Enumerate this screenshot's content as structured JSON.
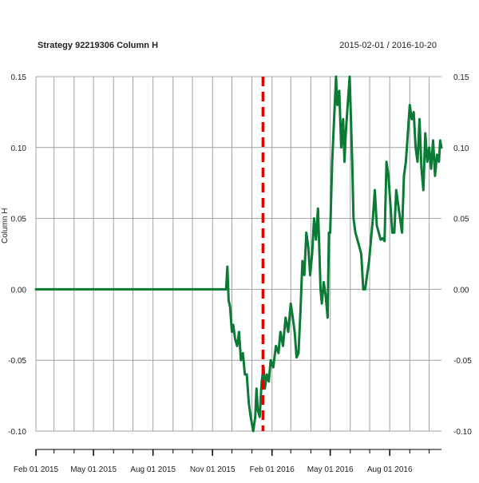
{
  "title": "Strategy 92219306 Column H",
  "date_range": "2015-02-01 / 2016-10-20",
  "colors": {
    "line": "#0b7a35",
    "event_line": "#e00000",
    "grid": "#a0a0a0",
    "axis": "#000000"
  },
  "chart_data": {
    "type": "line",
    "title": "Strategy 92219306 Column H",
    "subtitle": "2015-02-01 / 2016-10-20",
    "xlabel": "",
    "ylabel": "Column H",
    "x_range": [
      "2015-02-01",
      "2016-10-20"
    ],
    "ylim": [
      -0.1,
      0.15
    ],
    "y_ticks": [
      -0.1,
      -0.05,
      0.0,
      0.05,
      0.1,
      0.15
    ],
    "y_tick_labels": [
      "-0.10",
      "-0.05",
      "0.00",
      "0.05",
      "0.10",
      "0.15"
    ],
    "x_tick_dates": [
      "2015-02-01",
      "2015-05-01",
      "2015-08-01",
      "2015-11-01",
      "2016-02-01",
      "2016-05-01",
      "2016-08-01"
    ],
    "x_tick_labels": [
      "Feb 01 2015",
      "May 01 2015",
      "Aug 01 2015",
      "Nov 01 2015",
      "Feb 01 2016",
      "May 01 2016",
      "Aug 01 2016"
    ],
    "grid": true,
    "event_line": {
      "date": "2016-01-18",
      "style": "dashed"
    },
    "series": [
      {
        "values": [
          [
            "2015-02-01",
            0.0
          ],
          [
            "2015-11-22",
            0.0
          ],
          [
            "2015-11-24",
            0.016
          ],
          [
            "2015-11-26",
            -0.008
          ],
          [
            "2015-11-28",
            -0.012
          ],
          [
            "2015-12-01",
            -0.03
          ],
          [
            "2015-12-03",
            -0.025
          ],
          [
            "2015-12-06",
            -0.035
          ],
          [
            "2015-12-09",
            -0.04
          ],
          [
            "2015-12-12",
            -0.03
          ],
          [
            "2015-12-15",
            -0.05
          ],
          [
            "2015-12-18",
            -0.045
          ],
          [
            "2015-12-21",
            -0.06
          ],
          [
            "2015-12-24",
            -0.06
          ],
          [
            "2015-12-27",
            -0.08
          ],
          [
            "2015-12-30",
            -0.09
          ],
          [
            "2016-01-01",
            -0.095
          ],
          [
            "2016-01-03",
            -0.1
          ],
          [
            "2016-01-06",
            -0.09
          ],
          [
            "2016-01-08",
            -0.07
          ],
          [
            "2016-01-10",
            -0.085
          ],
          [
            "2016-01-13",
            -0.09
          ],
          [
            "2016-01-16",
            -0.065
          ],
          [
            "2016-01-19",
            -0.055
          ],
          [
            "2016-01-21",
            -0.07
          ],
          [
            "2016-01-24",
            -0.06
          ],
          [
            "2016-01-27",
            -0.065
          ],
          [
            "2016-01-30",
            -0.05
          ],
          [
            "2016-02-03",
            -0.055
          ],
          [
            "2016-02-07",
            -0.04
          ],
          [
            "2016-02-11",
            -0.045
          ],
          [
            "2016-02-14",
            -0.03
          ],
          [
            "2016-02-18",
            -0.04
          ],
          [
            "2016-02-22",
            -0.02
          ],
          [
            "2016-02-26",
            -0.03
          ],
          [
            "2016-03-01",
            -0.01
          ],
          [
            "2016-03-04",
            -0.02
          ],
          [
            "2016-03-07",
            -0.03
          ],
          [
            "2016-03-10",
            -0.048
          ],
          [
            "2016-03-13",
            -0.045
          ],
          [
            "2016-03-16",
            -0.015
          ],
          [
            "2016-03-19",
            0.02
          ],
          [
            "2016-03-22",
            0.01
          ],
          [
            "2016-03-25",
            0.04
          ],
          [
            "2016-03-28",
            0.03
          ],
          [
            "2016-03-31",
            0.01
          ],
          [
            "2016-04-03",
            0.025
          ],
          [
            "2016-04-06",
            0.05
          ],
          [
            "2016-04-09",
            0.035
          ],
          [
            "2016-04-12",
            0.057
          ],
          [
            "2016-04-14",
            0.03
          ],
          [
            "2016-04-16",
            0.0
          ],
          [
            "2016-04-18",
            -0.01
          ],
          [
            "2016-04-21",
            0.005
          ],
          [
            "2016-04-24",
            -0.005
          ],
          [
            "2016-04-27",
            -0.02
          ],
          [
            "2016-04-29",
            0.04
          ],
          [
            "2016-05-01",
            0.04
          ],
          [
            "2016-05-04",
            0.09
          ],
          [
            "2016-05-07",
            0.12
          ],
          [
            "2016-05-10",
            0.15
          ],
          [
            "2016-05-12",
            0.13
          ],
          [
            "2016-05-15",
            0.14
          ],
          [
            "2016-05-18",
            0.1
          ],
          [
            "2016-05-21",
            0.12
          ],
          [
            "2016-05-23",
            0.09
          ],
          [
            "2016-05-25",
            0.11
          ],
          [
            "2016-05-28",
            0.13
          ],
          [
            "2016-05-31",
            0.15
          ],
          [
            "2016-06-02",
            0.12
          ],
          [
            "2016-06-04",
            0.09
          ],
          [
            "2016-06-06",
            0.05
          ],
          [
            "2016-06-09",
            0.04
          ],
          [
            "2016-06-12",
            0.035
          ],
          [
            "2016-06-15",
            0.03
          ],
          [
            "2016-06-18",
            0.025
          ],
          [
            "2016-06-21",
            0.0
          ],
          [
            "2016-06-24",
            0.0
          ],
          [
            "2016-06-27",
            0.01
          ],
          [
            "2016-06-30",
            0.02
          ],
          [
            "2016-07-03",
            0.035
          ],
          [
            "2016-07-06",
            0.05
          ],
          [
            "2016-07-09",
            0.07
          ],
          [
            "2016-07-12",
            0.045
          ],
          [
            "2016-07-15",
            0.04
          ],
          [
            "2016-07-18",
            0.035
          ],
          [
            "2016-07-21",
            0.036
          ],
          [
            "2016-07-24",
            0.034
          ],
          [
            "2016-07-27",
            0.09
          ],
          [
            "2016-07-30",
            0.08
          ],
          [
            "2016-08-02",
            0.06
          ],
          [
            "2016-08-05",
            0.04
          ],
          [
            "2016-08-08",
            0.04
          ],
          [
            "2016-08-11",
            0.07
          ],
          [
            "2016-08-14",
            0.06
          ],
          [
            "2016-08-17",
            0.05
          ],
          [
            "2016-08-20",
            0.04
          ],
          [
            "2016-08-23",
            0.08
          ],
          [
            "2016-08-26",
            0.09
          ],
          [
            "2016-08-29",
            0.11
          ],
          [
            "2016-09-01",
            0.13
          ],
          [
            "2016-09-04",
            0.12
          ],
          [
            "2016-09-07",
            0.125
          ],
          [
            "2016-09-10",
            0.1
          ],
          [
            "2016-09-13",
            0.09
          ],
          [
            "2016-09-16",
            0.12
          ],
          [
            "2016-09-19",
            0.085
          ],
          [
            "2016-09-22",
            0.07
          ],
          [
            "2016-09-25",
            0.11
          ],
          [
            "2016-09-28",
            0.09
          ],
          [
            "2016-10-01",
            0.1
          ],
          [
            "2016-10-04",
            0.085
          ],
          [
            "2016-10-07",
            0.105
          ],
          [
            "2016-10-10",
            0.08
          ],
          [
            "2016-10-13",
            0.095
          ],
          [
            "2016-10-16",
            0.09
          ],
          [
            "2016-10-18",
            0.105
          ],
          [
            "2016-10-20",
            0.1
          ]
        ]
      }
    ]
  }
}
